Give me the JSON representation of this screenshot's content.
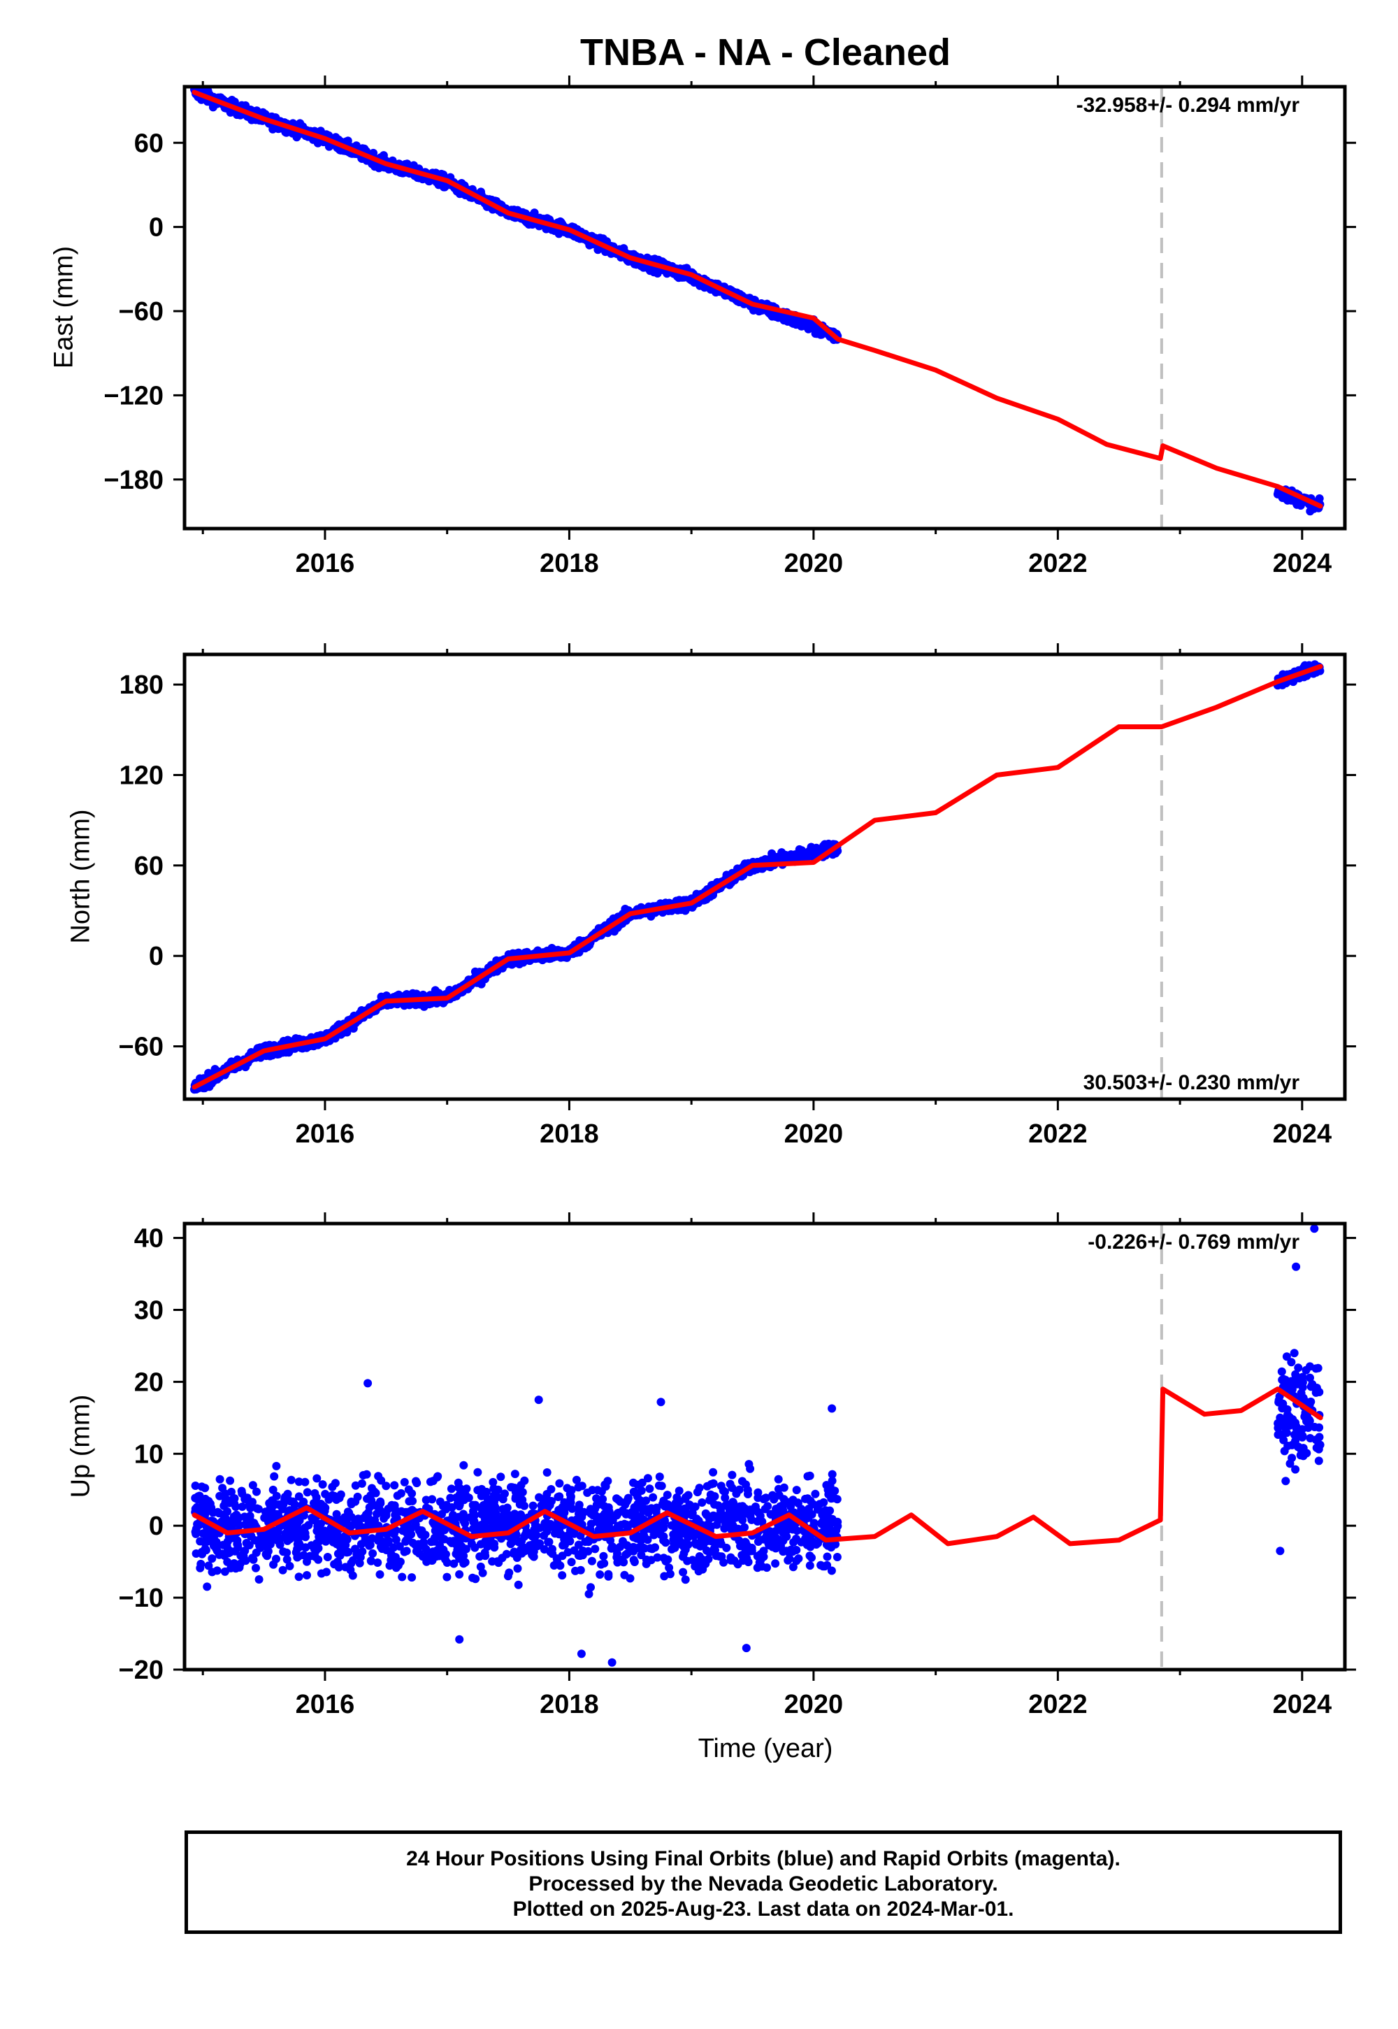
{
  "title": "TNBA  - NA - Cleaned",
  "xlabel": "Time (year)",
  "footer": {
    "line1": "24 Hour Positions Using Final Orbits (blue) and Rapid Orbits (magenta).",
    "line2": "Processed by the Nevada Geodetic Laboratory.",
    "line3": "Plotted on 2025-Aug-23. Last data on 2024-Mar-01."
  },
  "colors": {
    "data": "#0000ff",
    "model": "#ff0000",
    "break": "#c0c0c0"
  },
  "chart_data": [
    {
      "type": "scatter",
      "ylabel": "East (mm)",
      "rate": "-32.958+/- 0.294 mm/yr",
      "rate_position": "top-right",
      "xlim": [
        2014.85,
        2024.35
      ],
      "ylim": [
        -215,
        100
      ],
      "xticks": [
        2016,
        2018,
        2020,
        2022,
        2024
      ],
      "yticks": [
        -180,
        -120,
        -60,
        0,
        60
      ],
      "break_x": 2022.85,
      "data_segments": [
        {
          "x": [
            2014.93,
            2015.5,
            2016.0,
            2016.5,
            2017.0,
            2017.5,
            2018.0,
            2018.5,
            2019.0,
            2019.5,
            2020.2
          ],
          "y": [
            96,
            77,
            63,
            45,
            32,
            10,
            -2,
            -22,
            -35,
            -55,
            -78
          ]
        },
        {
          "x": [
            2023.8,
            2024.15
          ],
          "y": [
            -188,
            -200
          ]
        }
      ],
      "model": {
        "x": [
          2014.93,
          2015.5,
          2016.0,
          2016.5,
          2017.0,
          2017.5,
          2018.0,
          2018.5,
          2019.0,
          2019.5,
          2020.0,
          2020.2,
          2020.5,
          2021.0,
          2021.5,
          2022.0,
          2022.4,
          2022.84,
          2022.86,
          2023.3,
          2023.8,
          2024.15
        ],
        "y": [
          96,
          77,
          63,
          45,
          33,
          10,
          -2,
          -22,
          -34,
          -55,
          -65,
          -80,
          -88,
          -102,
          -122,
          -137,
          -155,
          -165,
          -156,
          -172,
          -185,
          -199
        ]
      }
    },
    {
      "type": "scatter",
      "ylabel": "North (mm)",
      "rate": "30.503+/- 0.230 mm/yr",
      "rate_position": "bottom-right",
      "xlim": [
        2014.85,
        2024.35
      ],
      "ylim": [
        -95,
        200
      ],
      "xticks": [
        2016,
        2018,
        2020,
        2022,
        2024
      ],
      "yticks": [
        -60,
        0,
        60,
        120,
        180
      ],
      "break_x": 2022.85,
      "data_segments": [
        {
          "x": [
            2014.93,
            2015.5,
            2016.0,
            2016.5,
            2017.0,
            2017.5,
            2018.0,
            2018.5,
            2019.0,
            2019.5,
            2020.2
          ],
          "y": [
            -87,
            -63,
            -55,
            -30,
            -28,
            -2,
            2,
            28,
            35,
            60,
            72
          ]
        },
        {
          "x": [
            2023.8,
            2024.15
          ],
          "y": [
            182,
            192
          ]
        }
      ],
      "model": {
        "x": [
          2014.93,
          2015.5,
          2016.0,
          2016.5,
          2017.0,
          2017.5,
          2018.0,
          2018.5,
          2019.0,
          2019.5,
          2020.0,
          2020.5,
          2021.0,
          2021.5,
          2022.0,
          2022.5,
          2022.85,
          2023.3,
          2023.8,
          2024.15
        ],
        "y": [
          -87,
          -63,
          -55,
          -30,
          -28,
          -2,
          2,
          28,
          35,
          60,
          62,
          90,
          95,
          120,
          125,
          152,
          152,
          165,
          182,
          192
        ]
      }
    },
    {
      "type": "scatter",
      "ylabel": "Up (mm)",
      "rate": "-0.226+/- 0.769 mm/yr",
      "rate_position": "top-right",
      "xlim": [
        2014.85,
        2024.35
      ],
      "ylim": [
        -20,
        42
      ],
      "xticks": [
        2016,
        2018,
        2020,
        2022,
        2024
      ],
      "yticks": [
        -20,
        -10,
        0,
        10,
        20,
        30,
        40
      ],
      "break_x": 2022.85,
      "data_segments": [
        {
          "x_range": [
            2014.93,
            2020.2
          ],
          "y_center": 0,
          "y_spread": 6
        },
        {
          "x_range": [
            2023.8,
            2024.15
          ],
          "y_center": 16,
          "y_spread": 7
        }
      ],
      "outliers": [
        [
          2016.35,
          19.8
        ],
        [
          2017.75,
          17.5
        ],
        [
          2018.75,
          17.2
        ],
        [
          2020.15,
          16.3
        ],
        [
          2018.1,
          -17.8
        ],
        [
          2018.35,
          -19
        ],
        [
          2019.45,
          -17
        ],
        [
          2017.1,
          -15.8
        ],
        [
          2024.1,
          41.3
        ],
        [
          2023.95,
          36
        ],
        [
          2023.82,
          -3.5
        ]
      ],
      "model": {
        "x": [
          2014.93,
          2015.2,
          2015.5,
          2015.85,
          2016.2,
          2016.5,
          2016.8,
          2017.2,
          2017.5,
          2017.8,
          2018.2,
          2018.5,
          2018.8,
          2019.2,
          2019.5,
          2019.8,
          2020.1,
          2020.5,
          2020.8,
          2021.1,
          2021.5,
          2021.8,
          2022.1,
          2022.5,
          2022.84,
          2022.86,
          2023.2,
          2023.5,
          2023.8,
          2024.15
        ],
        "y": [
          1.5,
          -1,
          -0.5,
          2.5,
          -1,
          -0.5,
          2,
          -1.5,
          -1,
          2,
          -1.5,
          -1,
          1.8,
          -1.5,
          -1,
          1.5,
          -2,
          -1.5,
          1.5,
          -2.5,
          -1.5,
          1.2,
          -2.5,
          -2,
          0.8,
          19,
          15.5,
          16,
          19,
          15
        ]
      }
    }
  ]
}
